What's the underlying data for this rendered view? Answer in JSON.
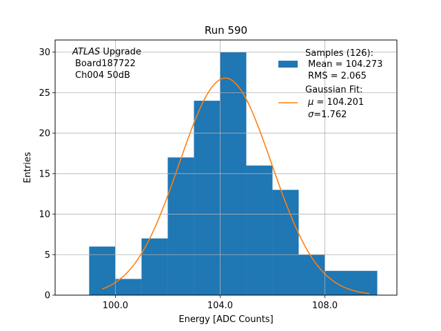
{
  "chart_data": {
    "type": "bar",
    "title": "Run 590",
    "xlabel": "Energy [ADC Counts]",
    "ylabel": "Entries",
    "xlim": [
      97.7,
      110.75
    ],
    "ylim": [
      0,
      31.5
    ],
    "xticks": [
      100.0,
      104.0,
      108.0
    ],
    "xtick_labels": [
      "100.0",
      "104.0",
      "108.0"
    ],
    "yticks": [
      0,
      5,
      10,
      15,
      20,
      25,
      30
    ],
    "ytick_labels": [
      "0",
      "5",
      "10",
      "15",
      "20",
      "25",
      "30"
    ],
    "grid": true,
    "bin_edges": [
      99.0,
      100.0,
      101.0,
      102.0,
      103.0,
      104.0,
      105.0,
      106.0,
      107.0,
      108.0,
      109.0,
      110.0
    ],
    "values": [
      6,
      2,
      7,
      17,
      24,
      30,
      16,
      13,
      5,
      3,
      3
    ],
    "histogram_color": "#1f77b4",
    "fit": {
      "type": "gaussian",
      "mu": 104.201,
      "sigma": 1.762,
      "peak": 26.8,
      "x_range": [
        99.5,
        109.7
      ],
      "color": "#ff7f0e"
    },
    "annotation": {
      "italic": "ATLAS",
      "line1_rest": " Upgrade",
      "line2": "Board187722",
      "line3": "Ch004 50dB"
    },
    "legend": {
      "placement": "top-right",
      "samples_label": "Samples (126):",
      "samples_mean": "Mean = 104.273",
      "samples_rms": "RMS = 2.065",
      "fit_label": "Gaussian Fit:",
      "fit_mu_symbol": "μ",
      "fit_mu_value": " = 104.201",
      "fit_sigma_symbol": "σ",
      "fit_sigma_value": "=1.762"
    }
  }
}
